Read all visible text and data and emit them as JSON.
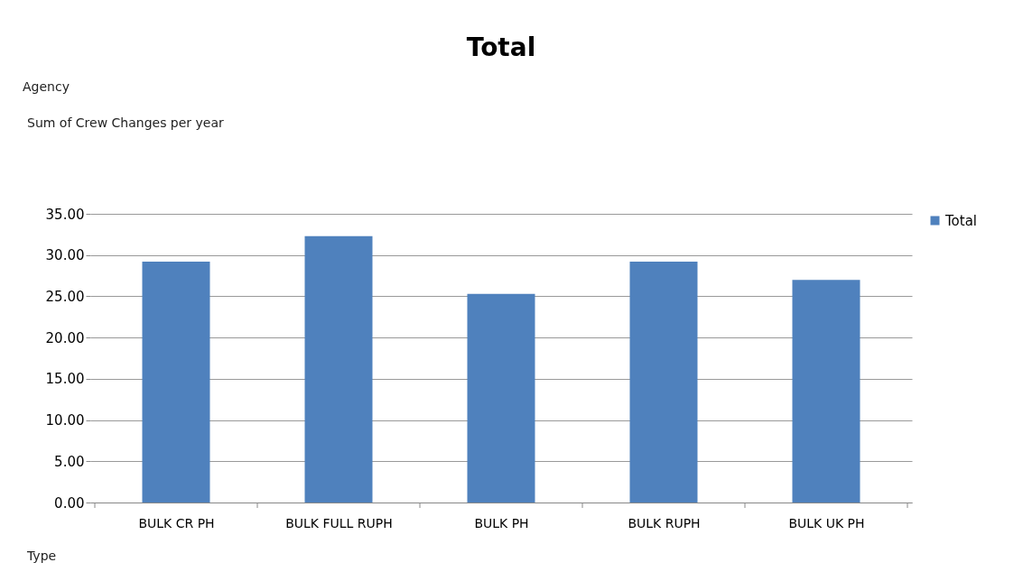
{
  "chart_data": {
    "type": "bar",
    "title": "Total",
    "categories": [
      "BULK CR PH",
      "BULK FULL RUPH",
      "BULK PH",
      "BULK RUPH",
      "BULK UK PH"
    ],
    "series": [
      {
        "name": "Total",
        "color": "#4f81bd",
        "values": [
          29.2,
          32.3,
          25.3,
          29.2,
          27.0
        ]
      }
    ],
    "ylim": [
      0,
      35
    ],
    "yticks": [
      {
        "value": 0,
        "label": "0.00"
      },
      {
        "value": 5,
        "label": "5.00"
      },
      {
        "value": 10,
        "label": "10.00"
      },
      {
        "value": 15,
        "label": "15.00"
      },
      {
        "value": 20,
        "label": "20.00"
      },
      {
        "value": 25,
        "label": "25.00"
      },
      {
        "value": 30,
        "label": "30.00"
      },
      {
        "value": 35,
        "label": "35.00"
      }
    ],
    "grid": "y",
    "legend": "right",
    "annotations": [
      "Agency",
      "Sum of Crew Changes per year",
      "Type"
    ]
  }
}
